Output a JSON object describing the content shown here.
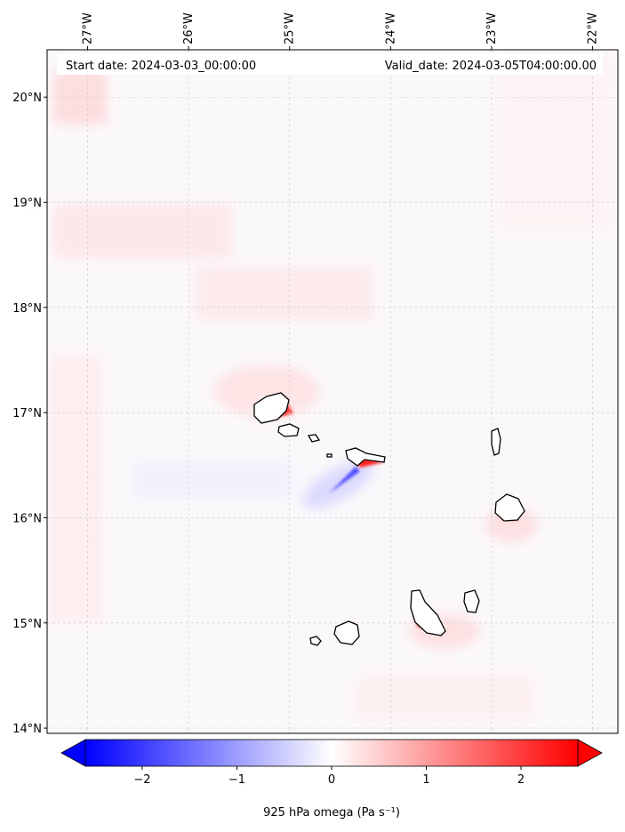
{
  "header": {
    "start_date": "Start date: 2024-03-03_00:00:00",
    "valid_date": "Valid_date: 2024-03-05T04:00:00.00"
  },
  "map": {
    "lon_range": [
      -27.4,
      -21.75
    ],
    "lat_range": [
      13.95,
      20.45
    ],
    "gridlines": true,
    "field": "925 hPa omega",
    "lon_ticks": [
      {
        "value": -27,
        "label": "27°W"
      },
      {
        "value": -26,
        "label": "26°W"
      },
      {
        "value": -25,
        "label": "25°W"
      },
      {
        "value": -24,
        "label": "24°W"
      },
      {
        "value": -23,
        "label": "23°W"
      },
      {
        "value": -22,
        "label": "22°W"
      }
    ],
    "lat_ticks": [
      {
        "value": 20,
        "label": "20°N"
      },
      {
        "value": 19,
        "label": "19°N"
      },
      {
        "value": 18,
        "label": "18°N"
      },
      {
        "value": 17,
        "label": "17°N"
      },
      {
        "value": 16,
        "label": "16°N"
      },
      {
        "value": 15,
        "label": "15°N"
      },
      {
        "value": 14,
        "label": "14°N"
      }
    ]
  },
  "colorbar": {
    "label": "925 hPa omega (Pa s⁻¹)",
    "range": [
      -2.6,
      2.6
    ],
    "extend": "both",
    "ticks": [
      {
        "value": -2,
        "label": "−2"
      },
      {
        "value": -1,
        "label": "−1"
      },
      {
        "value": 0,
        "label": "0"
      },
      {
        "value": 1,
        "label": "1"
      },
      {
        "value": 2,
        "label": "2"
      }
    ],
    "colors": {
      "negative": "#0000ff",
      "zero": "#ffffff",
      "positive": "#ff0000"
    }
  }
}
